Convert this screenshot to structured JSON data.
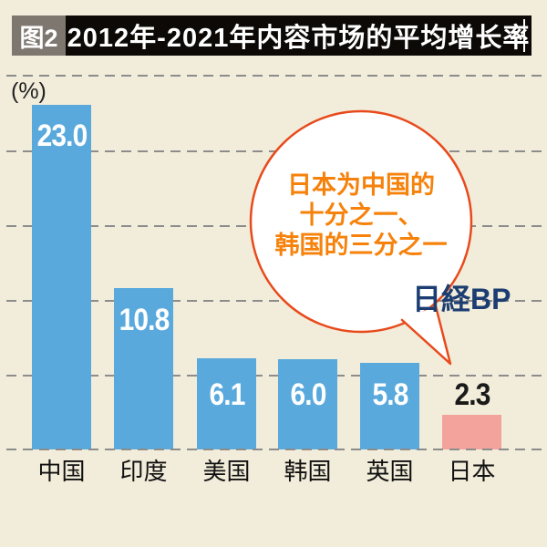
{
  "header": {
    "figure_label": "图2",
    "title": "2012年-2021年内容市场的平均增长率"
  },
  "chart": {
    "unit": "(%)"
  },
  "chart_data": {
    "type": "bar",
    "title": "2012年-2021年内容市场的平均增长率",
    "categories": [
      "中国",
      "印度",
      "美国",
      "韩国",
      "英国",
      "日本"
    ],
    "values": [
      23.0,
      10.8,
      6.1,
      6.0,
      5.8,
      2.3
    ],
    "value_labels": [
      "23.0",
      "10.8",
      "6.1",
      "6.0",
      "5.8",
      "2.3"
    ],
    "xlabel": "",
    "ylabel": "(%)",
    "ylim": [
      0,
      25
    ],
    "gridline_interval": 5,
    "grid_style": "dashed",
    "legend": "none",
    "bar_color": "#59a9dd",
    "highlight_bar": "日本",
    "highlight_color": "#f4a39c",
    "value_label_colors": [
      "#ffffff",
      "#ffffff",
      "#ffffff",
      "#ffffff",
      "#ffffff",
      "#1a1a1a"
    ]
  },
  "callout": {
    "lines": [
      "日本为中国的",
      "十分之一、",
      "韩国的三分之一"
    ],
    "text_color": "#f6820b",
    "border_color": "#e84a1c"
  },
  "logo": {
    "text": "日経BP",
    "color": "#1c3d72"
  },
  "colors": {
    "background": "#f2edda",
    "header_bar": "#0c0906",
    "figure_badge_bg": "#7d7770",
    "grid": "#8c8c8c"
  }
}
